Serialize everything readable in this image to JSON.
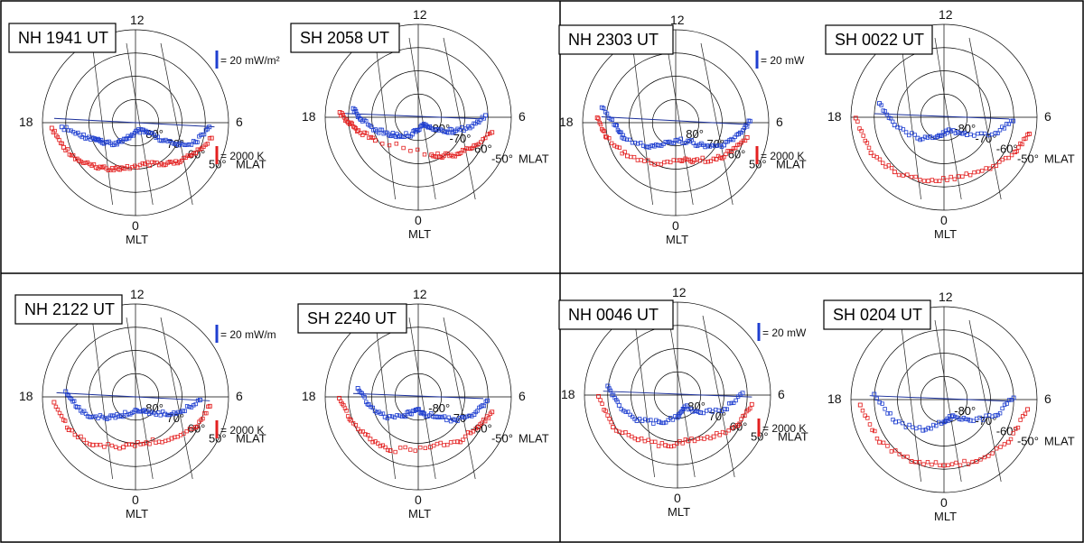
{
  "colors": {
    "poynting": "#1f3fd0",
    "temperature": "#e32020",
    "grid": "#000000",
    "frame": "#000000"
  },
  "labels": {
    "noon": "12",
    "midnight": "0",
    "dawn": "6",
    "dusk": "18",
    "mlt": "MLT",
    "mlat": "MLAT",
    "lat80": "80°",
    "lat70": "70°",
    "lat60": "60°",
    "lat50": "50°",
    "slat80": "-80°",
    "slat70": "-70°",
    "slat60": "-60°",
    "slat50": "-50°",
    "poynting_scale": "= 20 mW/m²",
    "poynting_scale_short": "= 20 mW/m",
    "poynting_scale_tiny": "= 20 mW",
    "temp_scale": "= 2000 K",
    "temp_scale_short": "= 2000 K"
  },
  "chart_data": [
    {
      "type": "scatter",
      "title": "NH 1941 UT",
      "hemisphere": "NH",
      "poynting": [
        [
          18.5,
          58
        ],
        [
          19.2,
          65
        ],
        [
          19.8,
          70
        ],
        [
          20.5,
          72
        ],
        [
          21.5,
          76
        ],
        [
          22.5,
          80
        ],
        [
          0.5,
          84
        ],
        [
          2.5,
          82
        ],
        [
          3.2,
          75
        ],
        [
          3.8,
          68
        ],
        [
          4.5,
          62
        ],
        [
          5.5,
          58
        ]
      ],
      "temperature": [
        [
          18.0,
          54
        ],
        [
          19.0,
          58
        ],
        [
          20.0,
          62
        ],
        [
          21.0,
          66
        ],
        [
          22.0,
          70
        ],
        [
          23.0,
          72
        ],
        [
          1.0,
          74
        ],
        [
          2.5,
          70
        ],
        [
          3.5,
          66
        ],
        [
          4.5,
          62
        ],
        [
          5.5,
          57
        ]
      ],
      "track": [
        [
          17.8,
          55
        ],
        [
          5.8,
          56
        ]
      ]
    },
    {
      "type": "scatter",
      "title": "SH 2058 UT",
      "hemisphere": "SH",
      "poynting": [
        [
          17.8,
          62
        ],
        [
          18.5,
          65
        ],
        [
          19.5,
          70
        ],
        [
          20.5,
          74
        ],
        [
          21.5,
          77
        ],
        [
          23.0,
          80
        ],
        [
          1.0,
          84
        ],
        [
          2.5,
          82
        ],
        [
          3.5,
          76
        ],
        [
          4.2,
          72
        ],
        [
          5.0,
          66
        ],
        [
          5.8,
          61
        ]
      ],
      "temperature": [
        [
          17.5,
          56
        ],
        [
          18.0,
          60
        ],
        [
          18.5,
          64
        ],
        [
          19.5,
          70
        ],
        [
          1.5,
          75
        ],
        [
          2.5,
          72
        ],
        [
          3.5,
          68
        ],
        [
          4.5,
          64
        ],
        [
          5.5,
          58
        ]
      ],
      "track": [
        [
          17.8,
          58
        ],
        [
          5.9,
          62
        ]
      ]
    },
    {
      "type": "scatter",
      "title": "NH 2303 UT",
      "hemisphere": "NH",
      "poynting": [
        [
          17.5,
          58
        ],
        [
          18.5,
          64
        ],
        [
          19.5,
          66
        ],
        [
          21.0,
          72
        ],
        [
          22.0,
          76
        ],
        [
          0.0,
          80
        ],
        [
          2.0,
          78
        ],
        [
          3.0,
          72
        ],
        [
          4.0,
          66
        ],
        [
          5.0,
          62
        ],
        [
          5.8,
          58
        ]
      ],
      "temperature": [
        [
          17.5,
          56
        ],
        [
          18.5,
          60
        ],
        [
          20.0,
          66
        ],
        [
          22.0,
          72
        ],
        [
          0.5,
          76
        ],
        [
          2.0,
          74
        ],
        [
          3.5,
          68
        ],
        [
          4.5,
          64
        ],
        [
          5.5,
          59
        ]
      ],
      "track": [
        [
          17.7,
          58
        ],
        [
          5.9,
          58
        ]
      ]
    },
    {
      "type": "scatter",
      "title": "SH 0022 UT",
      "hemisphere": "SH",
      "poynting": [
        [
          17.5,
          62
        ],
        [
          19.0,
          68
        ],
        [
          21.0,
          74
        ],
        [
          23.0,
          79
        ],
        [
          1.0,
          82
        ],
        [
          3.0,
          76
        ],
        [
          4.5,
          66
        ],
        [
          5.5,
          60
        ]
      ],
      "temperature": [
        [
          17.8,
          52
        ],
        [
          19.5,
          56
        ],
        [
          21.0,
          60
        ],
        [
          23.0,
          64
        ],
        [
          1.0,
          66
        ],
        [
          3.0,
          62
        ],
        [
          4.5,
          57
        ],
        [
          5.5,
          53
        ]
      ],
      "track": [
        [
          17.8,
          60
        ],
        [
          5.9,
          62
        ]
      ]
    },
    {
      "type": "scatter",
      "title": "NH 2122 UT",
      "hemisphere": "NH",
      "poynting": [
        [
          18.0,
          60
        ],
        [
          19.0,
          64
        ],
        [
          20.0,
          68
        ],
        [
          21.0,
          74
        ],
        [
          22.0,
          78
        ],
        [
          0.0,
          82
        ],
        [
          2.0,
          80
        ],
        [
          3.5,
          74
        ],
        [
          4.5,
          68
        ],
        [
          5.5,
          62
        ]
      ],
      "temperature": [
        [
          18.0,
          55
        ],
        [
          19.5,
          59
        ],
        [
          21.0,
          64
        ],
        [
          23.0,
          70
        ],
        [
          1.0,
          72
        ],
        [
          3.0,
          68
        ],
        [
          4.5,
          62
        ],
        [
          5.8,
          58
        ]
      ],
      "track": [
        [
          17.8,
          56
        ],
        [
          5.8,
          58
        ]
      ]
    },
    {
      "type": "scatter",
      "title": "SH 2240 UT",
      "hemisphere": "SH",
      "poynting": [
        [
          17.8,
          64
        ],
        [
          19.0,
          68
        ],
        [
          20.5,
          72
        ],
        [
          22.0,
          78
        ],
        [
          23.5,
          82
        ],
        [
          1.0,
          80
        ],
        [
          2.5,
          76
        ],
        [
          3.5,
          70
        ],
        [
          4.5,
          64
        ],
        [
          5.5,
          60
        ]
      ],
      "temperature": [
        [
          17.8,
          56
        ],
        [
          19.0,
          60
        ],
        [
          20.5,
          64
        ],
        [
          22.0,
          66
        ],
        [
          1.0,
          70
        ],
        [
          3.0,
          66
        ],
        [
          4.5,
          62
        ],
        [
          5.5,
          58
        ]
      ],
      "track": [
        [
          17.8,
          62
        ],
        [
          5.9,
          62
        ]
      ]
    },
    {
      "type": "scatter",
      "title": "NH 0046 UT",
      "hemisphere": "NH",
      "poynting": [
        [
          17.8,
          60
        ],
        [
          19.0,
          64
        ],
        [
          20.5,
          68
        ],
        [
          22.0,
          74
        ],
        [
          0.0,
          78
        ],
        [
          1.5,
          82
        ],
        [
          3.0,
          76
        ],
        [
          4.5,
          68
        ],
        [
          5.8,
          62
        ]
      ],
      "temperature": [
        [
          17.8,
          56
        ],
        [
          19.5,
          60
        ],
        [
          21.0,
          66
        ],
        [
          23.0,
          70
        ],
        [
          1.0,
          72
        ],
        [
          3.0,
          68
        ],
        [
          4.5,
          62
        ],
        [
          5.8,
          58
        ]
      ],
      "track": [
        [
          17.8,
          58
        ],
        [
          5.9,
          58
        ]
      ]
    },
    {
      "type": "scatter",
      "title": "SH 0204 UT",
      "hemisphere": "SH",
      "poynting": [
        [
          18.0,
          60
        ],
        [
          20.0,
          66
        ],
        [
          22.0,
          72
        ],
        [
          0.0,
          78
        ],
        [
          1.5,
          80
        ],
        [
          3.0,
          74
        ],
        [
          4.5,
          66
        ],
        [
          5.8,
          60
        ]
      ],
      "temperature": [
        [
          18.0,
          54
        ],
        [
          20.0,
          58
        ],
        [
          22.0,
          62
        ],
        [
          0.0,
          64
        ],
        [
          2.0,
          62
        ],
        [
          4.0,
          58
        ],
        [
          5.8,
          54
        ]
      ],
      "track": [
        [
          17.8,
          58
        ],
        [
          5.9,
          60
        ]
      ]
    }
  ]
}
